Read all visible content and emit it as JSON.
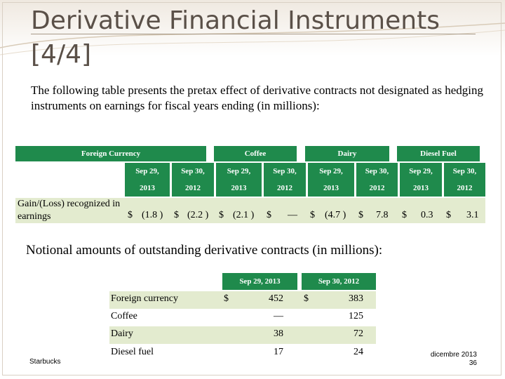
{
  "slide": {
    "title": "Derivative Financial Instruments [4/4]",
    "intro": "The following table presents the pretax effect of derivative contracts not designated as hedging instruments on earnings for fiscal years ending (in millions):"
  },
  "table1": {
    "groups": [
      "Foreign Currency",
      "Coffee",
      "Dairy",
      "Diesel Fuel"
    ],
    "periods": [
      {
        "line1": "Sep 29,",
        "line2": "2013"
      },
      {
        "line1": "Sep 30,",
        "line2": "2012"
      },
      {
        "line1": "Sep 29,",
        "line2": "2013"
      },
      {
        "line1": "Sep 30,",
        "line2": "2012"
      },
      {
        "line1": "Sep 29,",
        "line2": "2013"
      },
      {
        "line1": "Sep 30,",
        "line2": "2012"
      },
      {
        "line1": "Sep 29,",
        "line2": "2013"
      },
      {
        "line1": "Sep 30,",
        "line2": "2012"
      }
    ],
    "row_label": "Gain/(Loss) recognized in earnings",
    "row_label_line1": "Gain/(Loss) recognized in",
    "row_label_line2": "earnings",
    "cells": [
      {
        "sym": "$",
        "val": "(1.8 )"
      },
      {
        "sym": "$",
        "val": "(2.2 )"
      },
      {
        "sym": "$",
        "val": "(2.1 )"
      },
      {
        "sym": "$",
        "val": "—"
      },
      {
        "sym": "$",
        "val": "(4.7 )"
      },
      {
        "sym": "$",
        "val": "7.8"
      },
      {
        "sym": "$",
        "val": "0.3"
      },
      {
        "sym": "$",
        "val": "3.1"
      }
    ]
  },
  "notional": {
    "title": "Notional amounts of outstanding derivative contracts (in millions):",
    "headers": [
      "Sep 29, 2013",
      "Sep 30, 2012"
    ],
    "rows": [
      {
        "label": "Foreign currency",
        "sym1": "$",
        "v1": "452",
        "sym2": "$",
        "v2": "383"
      },
      {
        "label": "Coffee",
        "sym1": "",
        "v1": "—",
        "sym2": "",
        "v2": "125"
      },
      {
        "label": "Dairy",
        "sym1": "",
        "v1": "38",
        "sym2": "",
        "v2": "72"
      },
      {
        "label": "Diesel fuel",
        "sym1": "",
        "v1": "17",
        "sym2": "",
        "v2": "24"
      }
    ]
  },
  "footer": {
    "left": "Starbucks",
    "date": "dicembre 2013",
    "page": "36"
  },
  "colors": {
    "header_green": "#1f8a4c",
    "row_tint": "#e3ebcf",
    "title_text": "#5a5048"
  }
}
